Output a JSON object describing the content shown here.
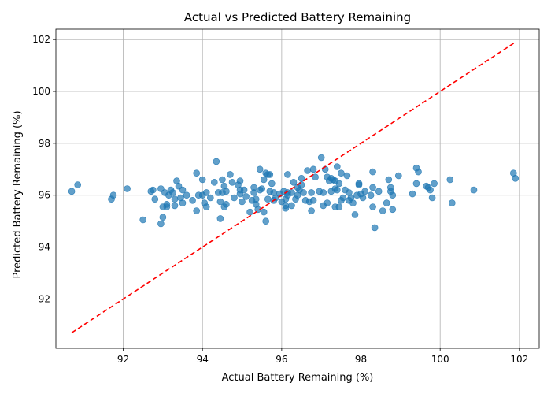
{
  "chart_data": {
    "type": "scatter",
    "title": "Actual vs Predicted Battery Remaining",
    "xlabel": "Actual Battery Remaining (%)",
    "ylabel": "Predicted Battery Remaining (%)",
    "xlim": [
      90.3,
      102.5
    ],
    "ylim": [
      90.1,
      102.4
    ],
    "xticks": [
      92,
      94,
      96,
      98,
      100,
      102
    ],
    "yticks": [
      92,
      94,
      96,
      98,
      100,
      102
    ],
    "grid": true,
    "colors": {
      "points": "#1f77b4",
      "reference_line": "#ff0000"
    },
    "reference_line": {
      "style": "dashed",
      "x": [
        90.7,
        101.9
      ],
      "y": [
        90.7,
        101.9
      ]
    },
    "series": [
      {
        "points": [
          [
            90.7,
            96.15
          ],
          [
            90.85,
            96.4
          ],
          [
            91.7,
            95.85
          ],
          [
            91.75,
            96.0
          ],
          [
            92.1,
            96.25
          ],
          [
            92.5,
            95.05
          ],
          [
            92.7,
            96.15
          ],
          [
            92.75,
            96.2
          ],
          [
            92.8,
            95.85
          ],
          [
            92.95,
            96.25
          ],
          [
            92.95,
            94.9
          ],
          [
            93.0,
            95.55
          ],
          [
            93.0,
            95.15
          ],
          [
            93.05,
            96.1
          ],
          [
            93.1,
            95.55
          ],
          [
            93.1,
            95.65
          ],
          [
            93.15,
            96.0
          ],
          [
            93.2,
            96.2
          ],
          [
            93.25,
            96.1
          ],
          [
            93.3,
            95.6
          ],
          [
            93.3,
            95.85
          ],
          [
            93.35,
            96.55
          ],
          [
            93.4,
            96.35
          ],
          [
            93.45,
            95.9
          ],
          [
            93.5,
            96.2
          ],
          [
            93.5,
            95.7
          ],
          [
            93.6,
            96.0
          ],
          [
            93.75,
            95.8
          ],
          [
            93.85,
            96.85
          ],
          [
            93.85,
            95.4
          ],
          [
            93.9,
            96.0
          ],
          [
            94.0,
            96.6
          ],
          [
            94.0,
            96.0
          ],
          [
            94.05,
            95.7
          ],
          [
            94.1,
            96.1
          ],
          [
            94.1,
            95.55
          ],
          [
            94.2,
            95.9
          ],
          [
            94.3,
            96.5
          ],
          [
            94.35,
            97.3
          ],
          [
            94.4,
            96.1
          ],
          [
            94.45,
            95.75
          ],
          [
            94.45,
            95.1
          ],
          [
            94.5,
            96.6
          ],
          [
            94.5,
            96.1
          ],
          [
            94.55,
            95.55
          ],
          [
            94.55,
            96.35
          ],
          [
            94.6,
            95.65
          ],
          [
            94.6,
            96.15
          ],
          [
            94.7,
            96.8
          ],
          [
            94.75,
            96.5
          ],
          [
            94.8,
            95.9
          ],
          [
            94.9,
            96.4
          ],
          [
            94.95,
            96.55
          ],
          [
            94.95,
            96.05
          ],
          [
            94.95,
            96.2
          ],
          [
            95.0,
            95.75
          ],
          [
            95.05,
            96.2
          ],
          [
            95.1,
            95.95
          ],
          [
            95.2,
            95.35
          ],
          [
            95.25,
            95.8
          ],
          [
            95.3,
            96.1
          ],
          [
            95.3,
            96.3
          ],
          [
            95.35,
            95.65
          ],
          [
            95.35,
            95.85
          ],
          [
            95.4,
            95.45
          ],
          [
            95.45,
            97.0
          ],
          [
            95.45,
            96.2
          ],
          [
            95.5,
            96.25
          ],
          [
            95.55,
            96.6
          ],
          [
            95.55,
            95.35
          ],
          [
            95.6,
            95.0
          ],
          [
            95.6,
            96.85
          ],
          [
            95.65,
            96.8
          ],
          [
            95.65,
            95.85
          ],
          [
            95.7,
            96.15
          ],
          [
            95.7,
            96.8
          ],
          [
            95.75,
            96.45
          ],
          [
            95.8,
            95.8
          ],
          [
            95.8,
            96.1
          ],
          [
            95.85,
            95.9
          ],
          [
            95.95,
            96.05
          ],
          [
            96.0,
            95.75
          ],
          [
            96.05,
            96.15
          ],
          [
            96.1,
            95.5
          ],
          [
            96.1,
            95.6
          ],
          [
            96.1,
            95.85
          ],
          [
            96.15,
            96.0
          ],
          [
            96.15,
            96.1
          ],
          [
            96.15,
            96.8
          ],
          [
            96.25,
            95.6
          ],
          [
            96.25,
            96.1
          ],
          [
            96.3,
            96.5
          ],
          [
            96.35,
            95.85
          ],
          [
            96.4,
            96.0
          ],
          [
            96.4,
            96.3
          ],
          [
            96.45,
            96.2
          ],
          [
            96.5,
            96.65
          ],
          [
            96.5,
            96.4
          ],
          [
            96.55,
            96.1
          ],
          [
            96.6,
            95.8
          ],
          [
            96.65,
            96.95
          ],
          [
            96.7,
            95.75
          ],
          [
            96.75,
            96.1
          ],
          [
            96.75,
            95.4
          ],
          [
            96.8,
            95.8
          ],
          [
            96.8,
            97.0
          ],
          [
            96.85,
            96.7
          ],
          [
            96.95,
            96.15
          ],
          [
            97.0,
            97.45
          ],
          [
            97.05,
            96.1
          ],
          [
            97.05,
            95.6
          ],
          [
            97.1,
            97.0
          ],
          [
            97.15,
            96.7
          ],
          [
            97.15,
            95.7
          ],
          [
            97.2,
            96.55
          ],
          [
            97.25,
            96.65
          ],
          [
            97.25,
            96.15
          ],
          [
            97.3,
            96.6
          ],
          [
            97.35,
            96.55
          ],
          [
            97.35,
            95.55
          ],
          [
            97.35,
            96.25
          ],
          [
            97.4,
            97.1
          ],
          [
            97.4,
            96.2
          ],
          [
            97.45,
            95.55
          ],
          [
            97.45,
            96.45
          ],
          [
            97.5,
            96.85
          ],
          [
            97.5,
            95.8
          ],
          [
            97.55,
            95.9
          ],
          [
            97.6,
            96.2
          ],
          [
            97.65,
            96.75
          ],
          [
            97.7,
            96.1
          ],
          [
            97.7,
            95.8
          ],
          [
            97.75,
            95.9
          ],
          [
            97.8,
            95.7
          ],
          [
            97.85,
            95.25
          ],
          [
            97.9,
            96.0
          ],
          [
            97.95,
            96.4
          ],
          [
            97.95,
            96.45
          ],
          [
            98.0,
            96.05
          ],
          [
            98.05,
            95.9
          ],
          [
            98.1,
            96.15
          ],
          [
            98.25,
            96.0
          ],
          [
            98.3,
            96.9
          ],
          [
            98.3,
            96.3
          ],
          [
            98.3,
            95.55
          ],
          [
            98.35,
            94.75
          ],
          [
            98.45,
            96.15
          ],
          [
            98.55,
            95.4
          ],
          [
            98.65,
            95.7
          ],
          [
            98.7,
            96.6
          ],
          [
            98.75,
            96.15
          ],
          [
            98.75,
            96.3
          ],
          [
            98.8,
            96.0
          ],
          [
            98.8,
            95.45
          ],
          [
            98.95,
            96.75
          ],
          [
            99.3,
            96.05
          ],
          [
            99.4,
            97.05
          ],
          [
            99.4,
            96.45
          ],
          [
            99.45,
            96.9
          ],
          [
            99.65,
            96.35
          ],
          [
            99.7,
            96.3
          ],
          [
            99.75,
            96.2
          ],
          [
            99.8,
            95.9
          ],
          [
            99.85,
            96.45
          ],
          [
            100.25,
            96.6
          ],
          [
            100.3,
            95.7
          ],
          [
            100.85,
            96.2
          ],
          [
            101.85,
            96.85
          ],
          [
            101.9,
            96.65
          ]
        ]
      }
    ]
  }
}
